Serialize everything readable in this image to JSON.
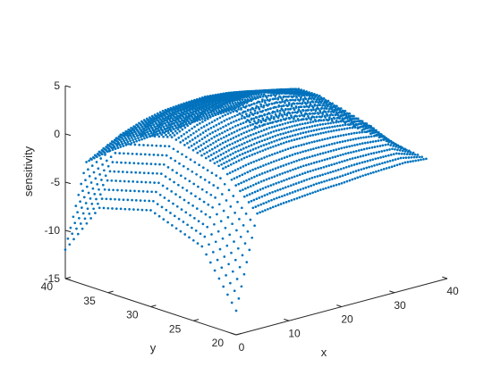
{
  "chart_data": {
    "type": "scatter",
    "title": "",
    "xlabel": "x",
    "ylabel": "y",
    "zlabel": "sensitivity",
    "xlim": [
      0,
      40
    ],
    "ylim": [
      20,
      40
    ],
    "zlim": [
      -15,
      5
    ],
    "x_ticks": [
      0,
      10,
      20,
      30,
      40
    ],
    "y_ticks": [
      20,
      25,
      30,
      35,
      40
    ],
    "z_ticks": [
      -15,
      -10,
      -5,
      0,
      5
    ],
    "x_tick_labels": [
      "0",
      "10",
      "20",
      "30",
      "40"
    ],
    "y_tick_labels": [
      "20",
      "25",
      "30",
      "35",
      "40"
    ],
    "z_tick_labels": [
      "-15",
      "-10",
      "-5",
      "0",
      "5"
    ],
    "grid": false,
    "marker_color": "#0072BD",
    "marker": "dot",
    "x_range_of_points": [
      0,
      36
    ],
    "y_range_of_points": [
      20,
      40
    ],
    "profiles_along_x": [
      {
        "y": 20,
        "x": [
          0,
          4,
          8,
          12,
          16,
          20,
          24,
          28,
          32,
          36
        ],
        "sensitivity": [
          -12.5,
          -3.0,
          -2.7,
          -2.5,
          -2.3,
          -2.2,
          -2.0,
          -1.9,
          -1.8,
          -2.0
        ]
      },
      {
        "y": 24,
        "x": [
          0,
          4,
          8,
          12,
          16,
          20,
          24,
          28,
          32,
          36
        ],
        "sensitivity": [
          -7.0,
          0.5,
          1.0,
          1.3,
          1.5,
          1.5,
          1.4,
          1.2,
          0.8,
          -1.5
        ]
      },
      {
        "y": 30,
        "x": [
          0,
          4,
          8,
          12,
          16,
          20,
          24,
          28,
          32,
          36
        ],
        "sensitivity": [
          -5.0,
          2.0,
          3.0,
          3.7,
          4.1,
          4.2,
          4.0,
          3.5,
          2.2,
          -1.0
        ]
      },
      {
        "y": 36,
        "x": [
          0,
          4,
          8,
          12,
          16,
          20,
          24,
          28,
          32,
          36
        ],
        "sensitivity": [
          -6.5,
          0.5,
          1.3,
          1.8,
          2.0,
          2.1,
          1.9,
          1.5,
          0.8,
          -2.5
        ]
      },
      {
        "y": 40,
        "x": [
          0,
          4,
          8,
          12,
          16,
          20,
          24,
          28,
          32,
          36
        ],
        "sensitivity": [
          -12.0,
          -3.5,
          -3.0,
          -2.8,
          -2.6,
          -2.5,
          -2.3,
          -2.2,
          -2.1,
          -4.5
        ]
      }
    ]
  }
}
